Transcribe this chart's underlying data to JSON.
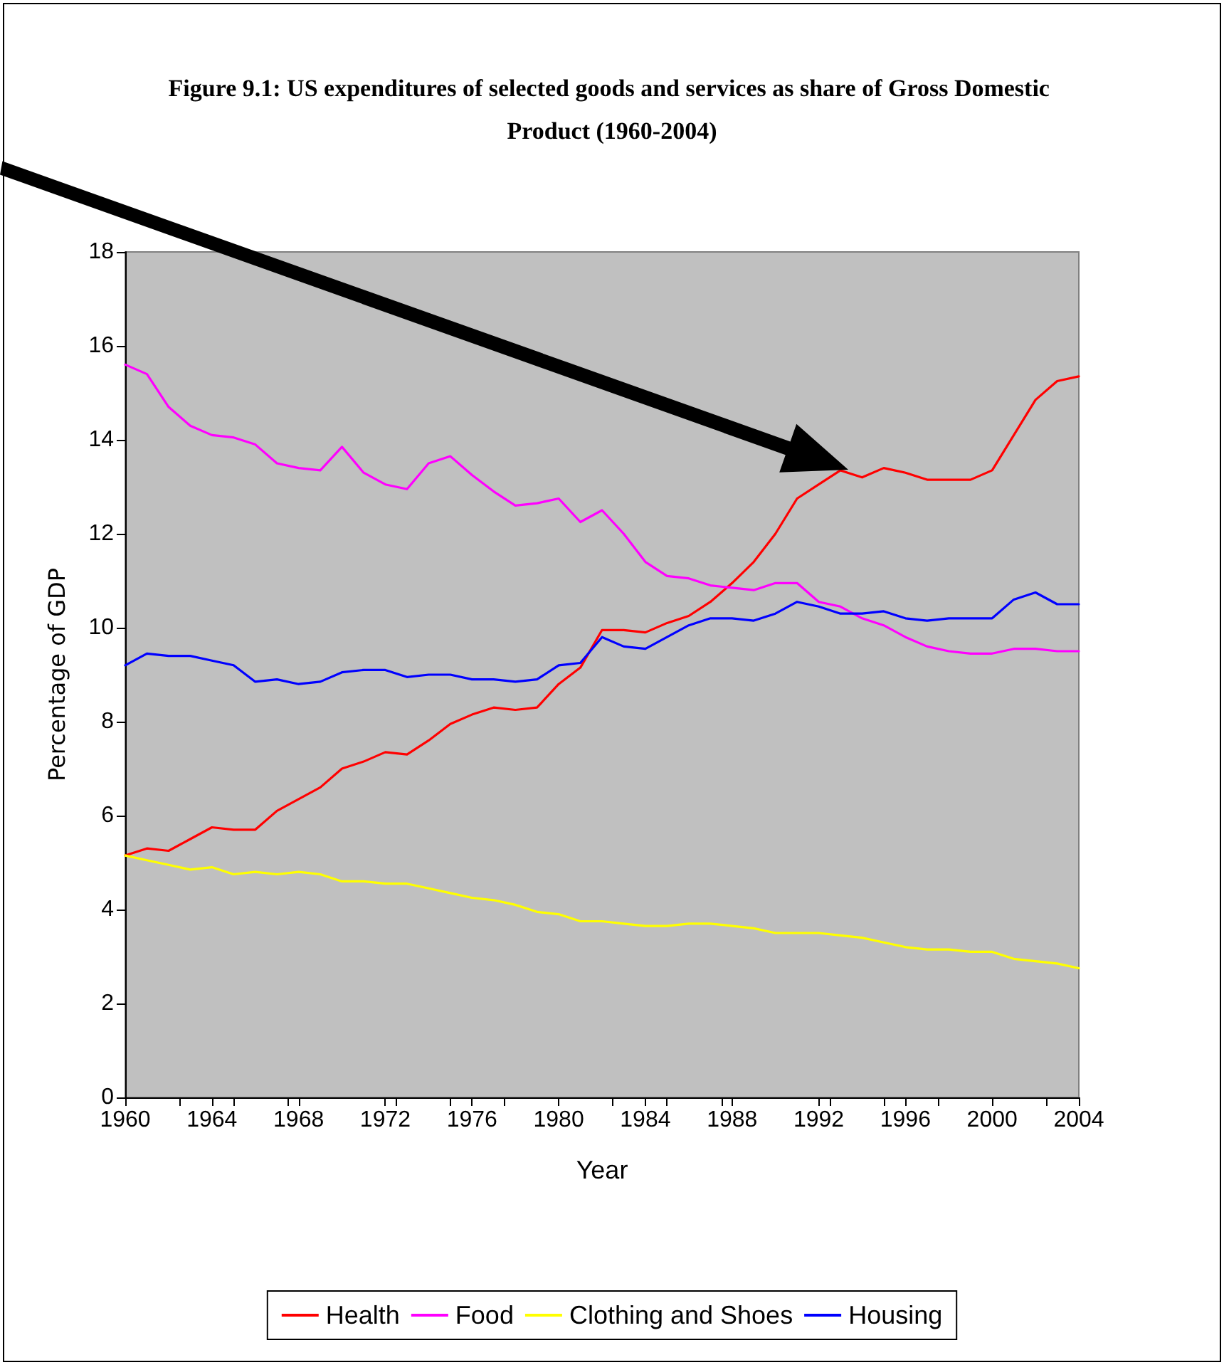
{
  "chart_data": {
    "type": "line",
    "title": "Figure 9.1: US expenditures of selected goods and services as share of Gross Domestic Product (1960-2004)",
    "xlabel": "Year",
    "ylabel": "Percentage of GDP",
    "x": [
      1960,
      1961,
      1962,
      1963,
      1964,
      1965,
      1966,
      1967,
      1968,
      1969,
      1970,
      1971,
      1972,
      1973,
      1974,
      1975,
      1976,
      1977,
      1978,
      1979,
      1980,
      1981,
      1982,
      1983,
      1984,
      1985,
      1986,
      1987,
      1988,
      1989,
      1990,
      1991,
      1992,
      1993,
      1994,
      1995,
      1996,
      1997,
      1998,
      1999,
      2000,
      2001,
      2002,
      2003,
      2004
    ],
    "series": [
      {
        "name": "Health",
        "color": "#ff0000",
        "values": [
          5.15,
          5.3,
          5.25,
          5.5,
          5.75,
          5.7,
          5.7,
          6.1,
          6.35,
          6.6,
          7.0,
          7.15,
          7.35,
          7.3,
          7.6,
          7.95,
          8.15,
          8.3,
          8.25,
          8.3,
          8.8,
          9.15,
          9.95,
          9.95,
          9.9,
          10.1,
          10.25,
          10.55,
          10.95,
          11.4,
          12.0,
          12.75,
          13.05,
          13.35,
          13.2,
          13.4,
          13.3,
          13.15,
          13.15,
          13.15,
          13.35,
          14.1,
          14.85,
          15.25,
          15.35
        ]
      },
      {
        "name": "Food",
        "color": "#ff00ff",
        "values": [
          15.6,
          15.4,
          14.7,
          14.3,
          14.1,
          14.05,
          13.9,
          13.5,
          13.4,
          13.35,
          13.85,
          13.3,
          13.05,
          12.95,
          13.5,
          13.65,
          13.25,
          12.9,
          12.6,
          12.65,
          12.75,
          12.25,
          12.5,
          12.0,
          11.4,
          11.1,
          11.05,
          10.9,
          10.85,
          10.8,
          10.95,
          10.95,
          10.55,
          10.45,
          10.2,
          10.05,
          9.8,
          9.6,
          9.5,
          9.45,
          9.45,
          9.55,
          9.55,
          9.5,
          9.5
        ]
      },
      {
        "name": "Clothing and Shoes",
        "color": "#ffff00",
        "values": [
          5.15,
          5.05,
          4.95,
          4.85,
          4.9,
          4.75,
          4.8,
          4.75,
          4.8,
          4.75,
          4.6,
          4.6,
          4.55,
          4.55,
          4.45,
          4.35,
          4.25,
          4.2,
          4.1,
          3.95,
          3.9,
          3.75,
          3.75,
          3.7,
          3.65,
          3.65,
          3.7,
          3.7,
          3.65,
          3.6,
          3.5,
          3.5,
          3.5,
          3.45,
          3.4,
          3.3,
          3.2,
          3.15,
          3.15,
          3.1,
          3.1,
          2.95,
          2.9,
          2.85,
          2.75
        ]
      },
      {
        "name": "Housing",
        "color": "#0000ff",
        "values": [
          9.2,
          9.45,
          9.4,
          9.4,
          9.3,
          9.2,
          8.85,
          8.9,
          8.8,
          8.85,
          9.05,
          9.1,
          9.1,
          8.95,
          9.0,
          9.0,
          8.9,
          8.9,
          8.85,
          8.9,
          9.2,
          9.25,
          9.8,
          9.6,
          9.55,
          9.8,
          10.05,
          10.2,
          10.2,
          10.15,
          10.3,
          10.55,
          10.45,
          10.3,
          10.3,
          10.35,
          10.2,
          10.15,
          10.2,
          10.2,
          10.2,
          10.6,
          10.75,
          10.5,
          10.5
        ]
      }
    ],
    "xlim": [
      1960,
      2004
    ],
    "xticks": [
      1960,
      1964,
      1968,
      1972,
      1976,
      1980,
      1984,
      1988,
      1992,
      1996,
      2000,
      2004
    ],
    "ylim": [
      0,
      18
    ],
    "yticks": [
      0,
      2,
      4,
      6,
      8,
      10,
      12,
      14,
      16,
      18
    ],
    "grid": false,
    "legend": "bottom",
    "marker": "none",
    "line_style": "solid"
  }
}
